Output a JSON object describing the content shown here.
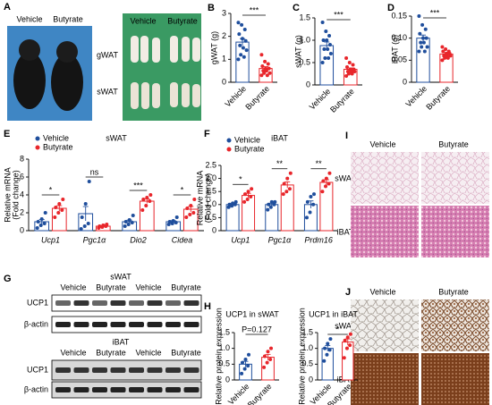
{
  "panel_labels": [
    "A",
    "B",
    "C",
    "D",
    "E",
    "F",
    "G",
    "H",
    "I",
    "J"
  ],
  "photo_a": {
    "mice": [
      "Vehicle",
      "Butyrate"
    ],
    "tissues": [
      "Vehicle",
      "Butyrate"
    ],
    "rows": [
      "gWAT",
      "sWAT"
    ]
  },
  "blot_g": [
    {
      "title": "sWAT",
      "lanes": [
        "Vehicle",
        "Butyrate",
        "Vehicle",
        "Butyrate"
      ],
      "rows": [
        "UCP1",
        "β-actin"
      ]
    },
    {
      "title": "iBAT",
      "lanes": [
        "Vehicle",
        "Butyrate",
        "Vehicle",
        "Butyrate"
      ],
      "rows": [
        "UCP1",
        "β-actin"
      ]
    }
  ],
  "histology_i": {
    "columns": [
      "Vehicle",
      "Butyrate"
    ],
    "rows": [
      "sWAT",
      "iBAT"
    ]
  },
  "histology_j": {
    "columns": [
      "Vehicle",
      "Butyrate"
    ],
    "rows": [
      "sWAT",
      "iBAT"
    ]
  },
  "chart_data": [
    {
      "type": "bar",
      "ylabel": "gWAT (g)",
      "categories": [
        "Vehicle",
        "Butyrate"
      ],
      "colors": [
        "#1f4e9c",
        "#e8262b"
      ],
      "values": [
        1.75,
        0.6
      ],
      "errors": [
        0.15,
        0.08
      ],
      "points": [
        [
          2.6,
          2.5,
          2.3,
          2.1,
          1.9,
          1.8,
          1.6,
          1.5,
          1.4,
          1.2,
          1.1,
          1.0
        ],
        [
          1.2,
          0.9,
          0.8,
          0.7,
          0.6,
          0.6,
          0.5,
          0.5,
          0.4,
          0.4,
          0.3,
          0.3
        ]
      ],
      "annotation": "***",
      "ylim": [
        0,
        3
      ],
      "yticks": [
        0,
        1,
        2,
        3
      ]
    },
    {
      "type": "bar",
      "ylabel": "sWAT (g)",
      "categories": [
        "Vehicle",
        "Butyrate"
      ],
      "colors": [
        "#1f4e9c",
        "#e8262b"
      ],
      "values": [
        0.88,
        0.35
      ],
      "errors": [
        0.08,
        0.03
      ],
      "points": [
        [
          1.4,
          1.2,
          1.1,
          1.0,
          1.0,
          0.9,
          0.8,
          0.8,
          0.7,
          0.6,
          0.6,
          0.5
        ],
        [
          0.6,
          0.5,
          0.45,
          0.4,
          0.35,
          0.35,
          0.3,
          0.3,
          0.3,
          0.25,
          0.25,
          0.2
        ]
      ],
      "annotation": "***",
      "ylim": [
        0,
        1.5
      ],
      "yticks": [
        0,
        0.5,
        {
          "value": 1,
          "label": "1.0"
        },
        1.5
      ]
    },
    {
      "type": "bar",
      "ylabel": "iBAT (g)",
      "categories": [
        "Vehicle",
        "Butyrate"
      ],
      "colors": [
        "#1f4e9c",
        "#e8262b"
      ],
      "values": [
        0.1,
        0.064
      ],
      "errors": [
        0.007,
        0.003
      ],
      "points": [
        [
          0.15,
          0.13,
          0.12,
          0.11,
          0.1,
          0.1,
          0.09,
          0.09,
          0.08,
          0.08,
          0.07,
          0.07
        ],
        [
          0.08,
          0.075,
          0.07,
          0.07,
          0.065,
          0.065,
          0.06,
          0.06,
          0.06,
          0.055,
          0.055,
          0.05
        ]
      ],
      "annotation": "***",
      "ylim": [
        0,
        0.15
      ],
      "yticks": [
        0,
        {
          "value": 0.05,
          "label": "0.05"
        },
        {
          "value": 0.1,
          "label": "0.10"
        },
        0.15
      ]
    },
    {
      "type": "bar",
      "title": "sWAT",
      "ylabel": [
        "Relative mRNA",
        "(Fold change)"
      ],
      "categories": [
        "Ucp1",
        "Pgc1α",
        "Dio2",
        "Cidea"
      ],
      "series": [
        {
          "name": "Vehicle",
          "color": "#1f4e9c",
          "values": [
            1.0,
            1.9,
            1.0,
            1.0
          ],
          "errors": [
            0.25,
            0.8,
            0.18,
            0.12
          ],
          "points": [
            [
              0.3,
              0.6,
              0.8,
              1.0,
              1.3,
              2.0
            ],
            [
              0.2,
              0.5,
              0.8,
              1.5,
              3.0,
              5.5
            ],
            [
              0.5,
              0.7,
              0.9,
              1.0,
              1.2,
              1.7
            ],
            [
              0.7,
              0.8,
              0.9,
              1.0,
              1.1,
              1.5
            ]
          ]
        },
        {
          "name": "Butyrate",
          "color": "#e8262b",
          "values": [
            2.5,
            0.5,
            3.3,
            2.4
          ],
          "errors": [
            0.3,
            0.06,
            0.25,
            0.3
          ],
          "points": [
            [
              1.5,
              2.0,
              2.3,
              2.6,
              3.0,
              3.5
            ],
            [
              0.3,
              0.4,
              0.5,
              0.5,
              0.6,
              0.7
            ],
            [
              2.3,
              2.8,
              3.3,
              3.5,
              3.7,
              4.0
            ],
            [
              1.5,
              1.8,
              2.0,
              2.5,
              2.8,
              3.5
            ]
          ]
        }
      ],
      "annotations": [
        "*",
        "ns",
        "***",
        "*"
      ],
      "ylim": [
        0,
        8
      ],
      "yticks": [
        0,
        2,
        4,
        6,
        8
      ]
    },
    {
      "type": "bar",
      "title": "iBAT",
      "ylabel": [
        "Relative mRNA",
        "(Fold change)"
      ],
      "categories": [
        "Ucp1",
        "Pgc1α",
        "Prdm16"
      ],
      "series": [
        {
          "name": "Vehicle",
          "color": "#1f4e9c",
          "values": [
            1.0,
            1.0,
            1.0
          ],
          "errors": [
            0.03,
            0.05,
            0.14
          ],
          "points": [
            [
              0.9,
              0.95,
              1.0,
              1.0,
              1.05,
              1.1
            ],
            [
              0.8,
              0.9,
              1.0,
              1.0,
              1.1,
              1.1
            ],
            [
              0.5,
              0.7,
              1.0,
              1.1,
              1.3,
              1.4
            ]
          ]
        },
        {
          "name": "Butyrate",
          "color": "#e8262b",
          "values": [
            1.35,
            1.75,
            1.85
          ],
          "errors": [
            0.08,
            0.12,
            0.1
          ],
          "points": [
            [
              1.1,
              1.2,
              1.3,
              1.4,
              1.5,
              1.6
            ],
            [
              1.4,
              1.5,
              1.6,
              1.8,
              2.0,
              2.2
            ],
            [
              1.5,
              1.7,
              1.8,
              1.9,
              2.0,
              2.2
            ]
          ]
        }
      ],
      "annotations": [
        "*",
        "**",
        "**"
      ],
      "ylim": [
        0,
        2.5
      ],
      "yticks": [
        0,
        0.5,
        {
          "value": 1,
          "label": "1.0"
        },
        1.5,
        {
          "value": 2,
          "label": "2.0"
        },
        2.5
      ]
    },
    {
      "type": "bar",
      "title": "UCP1 in sWAT",
      "ylabel": "Relative protein expression",
      "categories": [
        "Vehicle",
        "Butyrate"
      ],
      "colors": [
        "#1f4e9c",
        "#e8262b"
      ],
      "values": [
        0.5,
        0.72
      ],
      "errors": [
        0.09,
        0.09
      ],
      "points": [
        [
          0.2,
          0.35,
          0.45,
          0.55,
          0.65,
          0.8
        ],
        [
          0.4,
          0.55,
          0.65,
          0.75,
          0.9,
          1.0
        ]
      ],
      "annotation": "P=0.127",
      "ylim": [
        0,
        1.5
      ],
      "yticks": [
        0,
        0.5,
        {
          "value": 1,
          "label": "1.0"
        },
        1.5
      ]
    },
    {
      "type": "bar",
      "title": "UCP1 in iBAT",
      "ylabel": "Relative protein expression",
      "categories": [
        "Vehicle",
        "Butyrate"
      ],
      "colors": [
        "#1f4e9c",
        "#e8262b"
      ],
      "values": [
        1.0,
        1.2
      ],
      "errors": [
        0.09,
        0.1
      ],
      "points": [
        [
          0.6,
          0.8,
          0.95,
          1.0,
          1.15,
          1.3
        ],
        [
          0.7,
          1.0,
          1.1,
          1.25,
          1.35,
          1.45
        ]
      ],
      "annotation": "*",
      "ylim": [
        0,
        1.5
      ],
      "yticks": [
        0,
        0.5,
        {
          "value": 1,
          "label": "1.0"
        },
        1.5
      ]
    }
  ]
}
